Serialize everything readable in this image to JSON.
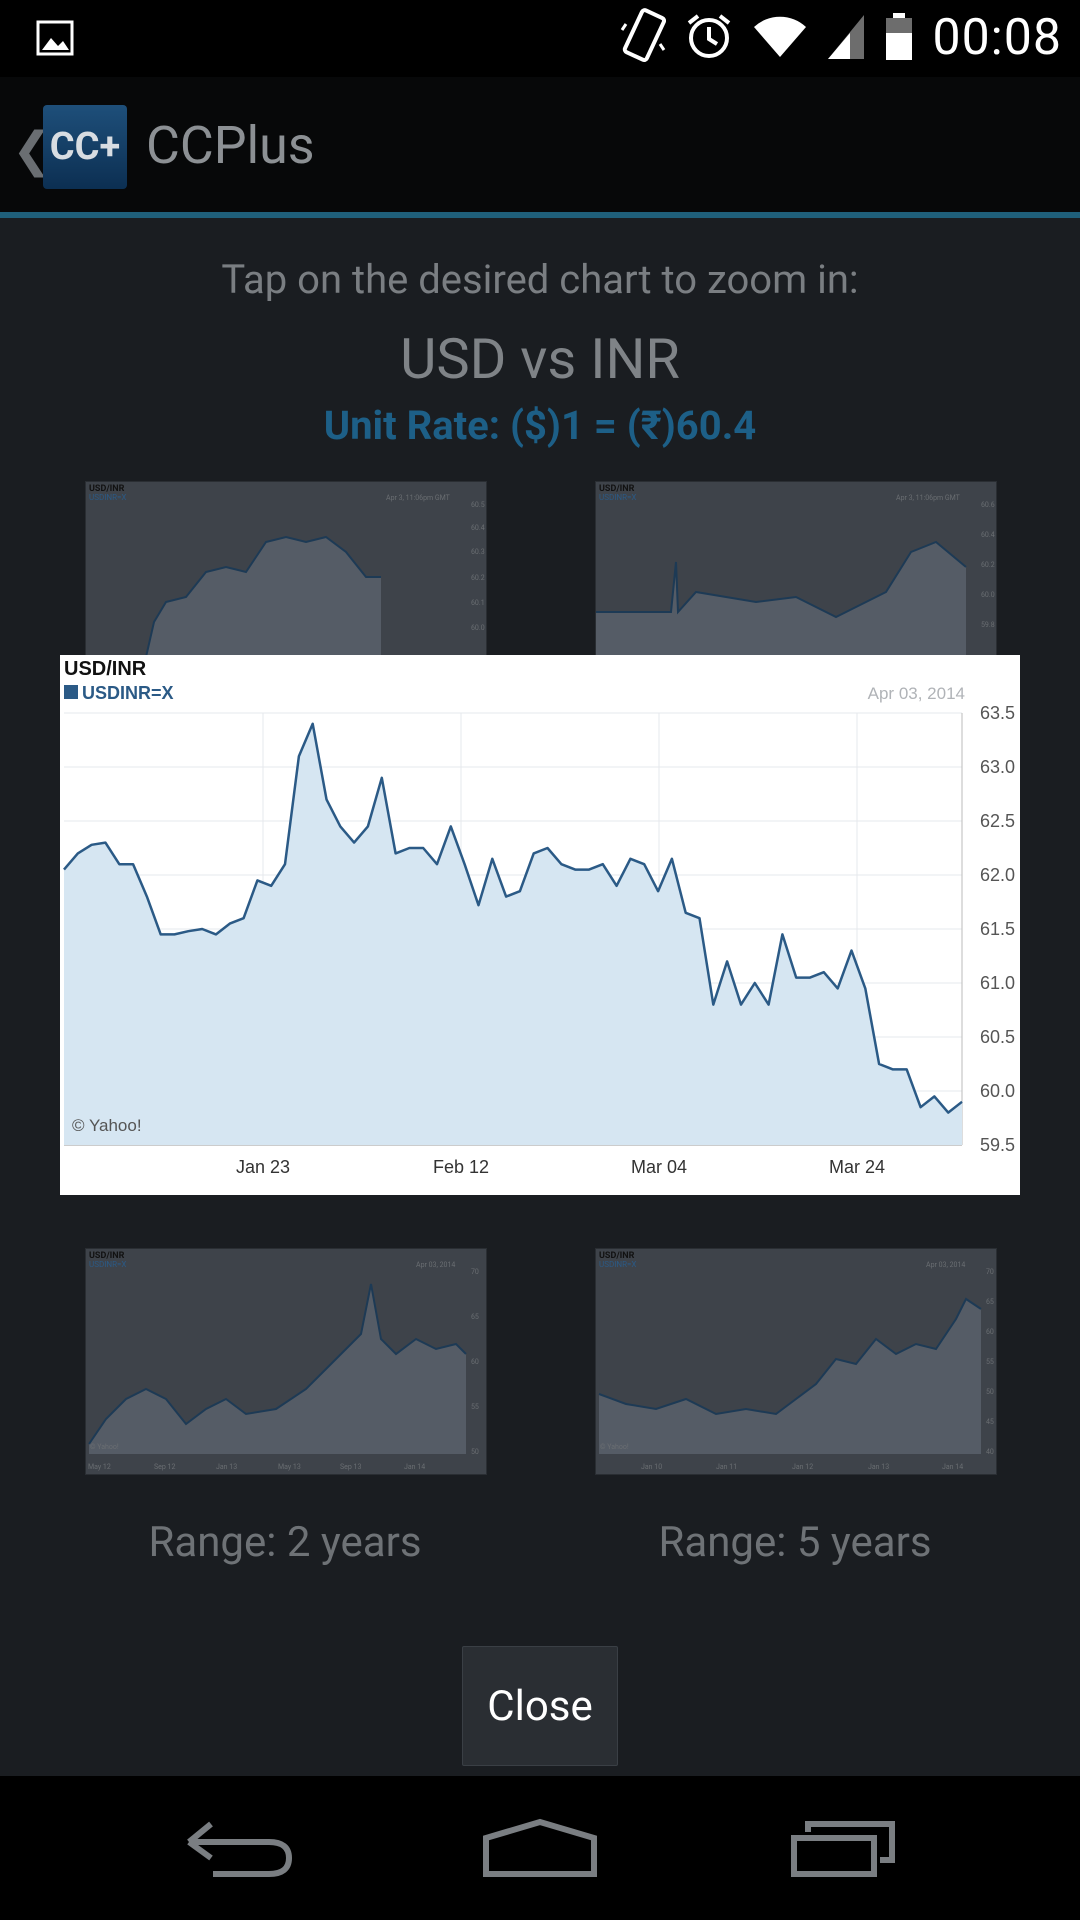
{
  "status_bar": {
    "time": "00:08",
    "icons": [
      "image-icon",
      "vibrate-icon",
      "alarm-icon",
      "wifi-icon",
      "cell-signal-icon",
      "battery-icon"
    ]
  },
  "action_bar": {
    "app_icon_text": "CC+",
    "title": "CCPlus"
  },
  "content": {
    "hint": "Tap on the desired chart to zoom in:",
    "pair_title": "USD vs INR",
    "unit_rate": "Unit Rate: ($)1 = (₹)60.4",
    "ranges": [
      "Range: 2 years",
      "Range: 5 years"
    ],
    "close_label": "Close",
    "accent_color": "#1d5f87"
  },
  "thumbnails": [
    {
      "title": "USD/INR",
      "legend": "USDINR=X",
      "date": "Apr 3, 11:06pm GMT",
      "yticks": [
        "60.5",
        "60.4",
        "60.3",
        "60.2",
        "60.1",
        "60.0"
      ]
    },
    {
      "title": "USD/INR",
      "legend": "USDINR=X",
      "date": "Apr 3, 11:06pm GMT",
      "yticks": [
        "60.6",
        "60.4",
        "60.2",
        "60.0",
        "59.8"
      ]
    },
    {
      "title": "USD/INR",
      "legend": "USDINR=X",
      "date": "Apr 03, 2014",
      "yticks": [
        "70",
        "65",
        "60",
        "55",
        "50"
      ],
      "xticks": [
        "May 12",
        "Sep 12",
        "Jan 13",
        "May 13",
        "Sep 13",
        "Jan 14"
      ],
      "credit": "© Yahoo!"
    },
    {
      "title": "USD/INR",
      "legend": "USDINR=X",
      "date": "Apr 03, 2014",
      "yticks": [
        "70",
        "65",
        "60",
        "55",
        "50",
        "45",
        "40"
      ],
      "xticks": [
        "Jan 10",
        "Jan 11",
        "Jan 12",
        "Jan 13",
        "Jan 14"
      ],
      "credit": "© Yahoo!"
    }
  ],
  "chart_data": {
    "type": "area",
    "title": "USD/INR",
    "legend": "USDINR=X",
    "date_label": "Apr 03, 2014",
    "credit": "© Yahoo!",
    "xticks": [
      "Jan 23",
      "Feb 12",
      "Mar 04",
      "Mar 24"
    ],
    "yticks": [
      63.5,
      63.0,
      62.5,
      62.0,
      61.5,
      61.0,
      60.5,
      60.0,
      59.5
    ],
    "ylim": [
      59.5,
      63.5
    ],
    "grid": true,
    "line_color": "#2b5a86",
    "fill_color": "#d6e6f2",
    "series": [
      {
        "values": [
          62.05,
          62.2,
          62.28,
          62.3,
          62.1,
          62.1,
          61.8,
          61.45,
          61.45,
          61.48,
          61.5,
          61.45,
          61.55,
          61.6,
          61.95,
          61.9,
          62.1,
          63.1,
          63.4,
          62.7,
          62.45,
          62.3,
          62.45,
          62.9,
          62.2,
          62.25,
          62.25,
          62.1,
          62.45,
          62.1,
          61.72,
          62.15,
          61.8,
          61.85,
          62.2,
          62.25,
          62.1,
          62.05,
          62.05,
          62.1,
          61.9,
          62.15,
          62.1,
          61.85,
          62.15,
          61.65,
          61.6,
          60.8,
          61.2,
          60.8,
          61.0,
          60.8,
          61.45,
          61.05,
          61.05,
          61.1,
          60.95,
          61.3,
          60.95,
          60.25,
          60.2,
          60.2,
          59.85,
          59.95,
          59.8,
          59.9
        ]
      }
    ]
  }
}
